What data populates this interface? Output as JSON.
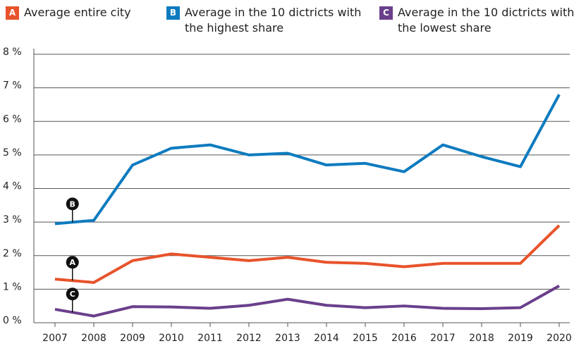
{
  "chart_data": {
    "type": "line",
    "categories": [
      "2007",
      "2008",
      "2009",
      "2010",
      "2011",
      "2012",
      "2013",
      "2014",
      "2015",
      "2016",
      "2017",
      "2018",
      "2019",
      "2020"
    ],
    "series": [
      {
        "badge": "A",
        "name": "Average entire city",
        "color": "#e8532b",
        "values": [
          1.3,
          1.2,
          1.85,
          2.05,
          1.95,
          1.85,
          1.95,
          1.8,
          1.77,
          1.67,
          1.77,
          1.77,
          1.77,
          2.9
        ]
      },
      {
        "badge": "B",
        "name": "Average in the 10 dictricts with the highest share",
        "color": "#0d7bbf",
        "values": [
          2.95,
          3.05,
          4.7,
          5.2,
          5.3,
          5.0,
          5.05,
          4.7,
          4.75,
          4.5,
          5.3,
          4.95,
          4.65,
          6.8
        ]
      },
      {
        "badge": "C",
        "name": "Average in the 10 dictricts with the lowest share",
        "color": "#6a3f8c",
        "values": [
          0.4,
          0.2,
          0.48,
          0.47,
          0.43,
          0.52,
          0.7,
          0.52,
          0.45,
          0.5,
          0.43,
          0.42,
          0.45,
          1.1
        ]
      }
    ],
    "ylim": [
      0,
      8
    ],
    "yticks": [
      {
        "value": 0,
        "label": "0 %"
      },
      {
        "value": 1,
        "label": "1 %"
      },
      {
        "value": 2,
        "label": "2 %"
      },
      {
        "value": 3,
        "label": "3 %"
      },
      {
        "value": 4,
        "label": "4 %"
      },
      {
        "value": 5,
        "label": "5 %"
      },
      {
        "value": 6,
        "label": "6 %"
      },
      {
        "value": 7,
        "label": "7 %"
      },
      {
        "value": 8,
        "label": "8 %"
      }
    ],
    "grid": true
  }
}
